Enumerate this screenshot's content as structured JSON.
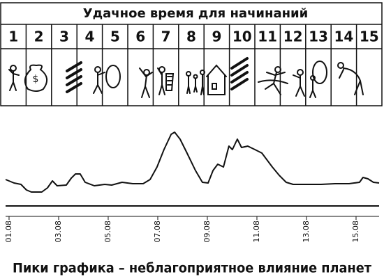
{
  "header": {
    "title": "Удачное время для начинаний",
    "days": [
      "1",
      "2",
      "3",
      "4",
      "5",
      "6",
      "7",
      "8",
      "9",
      "10",
      "11",
      "12",
      "13",
      "14",
      "15"
    ]
  },
  "chart_data": {
    "type": "line",
    "caption": "Пики графика – неблагоприятное влияние планет",
    "x": [
      0.86,
      1.2,
      1.48,
      1.7,
      1.9,
      2.32,
      2.55,
      2.75,
      2.94,
      3.31,
      3.51,
      3.68,
      3.87,
      4.07,
      4.44,
      4.86,
      5.14,
      5.56,
      5.99,
      6.41,
      6.69,
      6.97,
      7.25,
      7.54,
      7.68,
      7.9,
      8.18,
      8.52,
      8.8,
      9.03,
      9.23,
      9.42,
      9.65,
      9.87,
      10.01,
      10.21,
      10.38,
      10.63,
      10.92,
      11.2,
      11.62,
      11.9,
      12.18,
      12.46,
      13.03,
      13.59,
      14.15,
      14.72,
      15.14,
      15.28,
      15.48,
      15.7,
      15.93
    ],
    "values": [
      38,
      33,
      31,
      23,
      20,
      20,
      26,
      36,
      29,
      30,
      40,
      46,
      46,
      34,
      29,
      31,
      30,
      34,
      32,
      32,
      38,
      56,
      81,
      103,
      106,
      96,
      76,
      51,
      34,
      33,
      51,
      60,
      56,
      86,
      81,
      96,
      84,
      86,
      81,
      76,
      56,
      44,
      34,
      31,
      31,
      31,
      32,
      32,
      34,
      41,
      39,
      34,
      33
    ],
    "color": "#111111",
    "xlim": [
      0.86,
      15.93
    ],
    "ylim": [
      0,
      110
    ],
    "xticks": [
      {
        "value": 1,
        "label": "01.08"
      },
      {
        "value": 3,
        "label": "03.08"
      },
      {
        "value": 5,
        "label": "05.08"
      },
      {
        "value": 7,
        "label": "07.08"
      },
      {
        "value": 9,
        "label": "09.08"
      },
      {
        "value": 11,
        "label": "11.08"
      },
      {
        "value": 13,
        "label": "13.08"
      },
      {
        "value": 15,
        "label": "15.08"
      }
    ]
  }
}
